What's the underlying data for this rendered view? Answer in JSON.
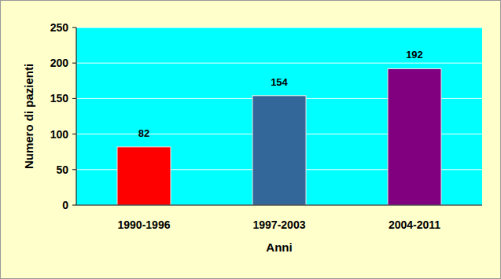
{
  "chart_data": {
    "type": "bar",
    "x_label": "Anni",
    "y_label": "Numero di pazienti",
    "categories": [
      "1990-1996",
      "1997-2003",
      "2004-2011"
    ],
    "values": [
      82,
      154,
      192
    ],
    "colors": [
      "#ff0000",
      "#336699",
      "#800080"
    ],
    "ylim": [
      0,
      250
    ],
    "yticks": [
      0,
      50,
      100,
      150,
      200,
      250
    ],
    "grid": true,
    "data_labels": true
  }
}
